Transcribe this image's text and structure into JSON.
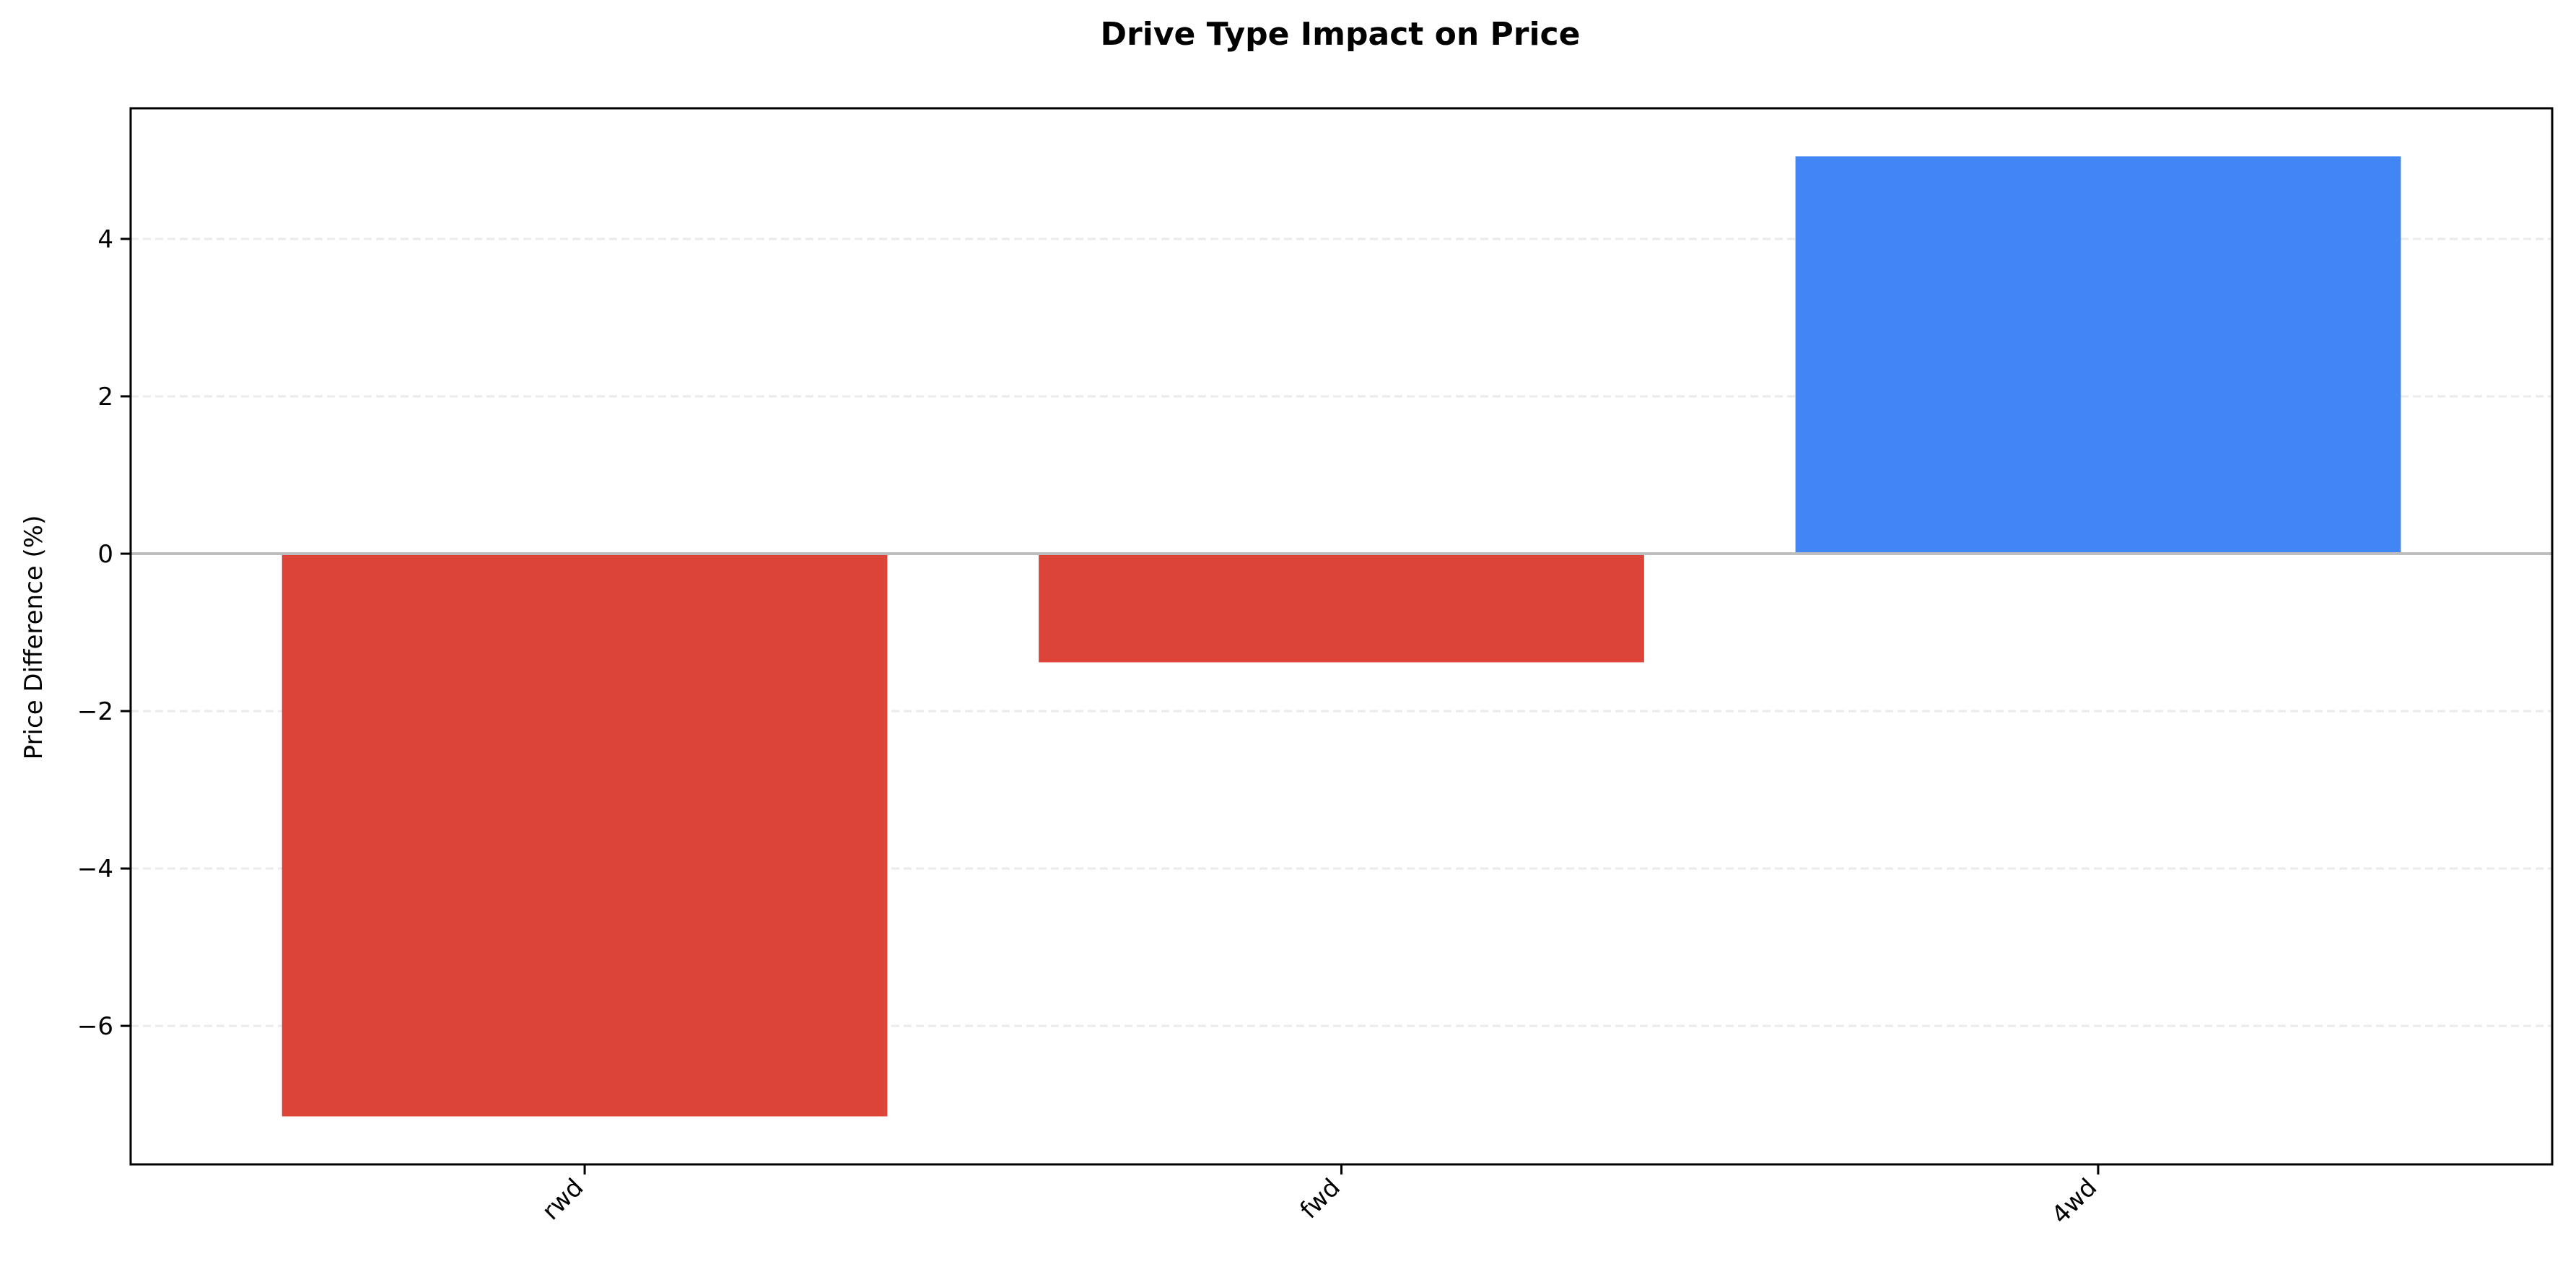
{
  "chart_data": {
    "type": "bar",
    "title": "Drive Type Impact on Price",
    "xlabel": "",
    "ylabel": "Price Difference (%)",
    "categories": [
      "rwd",
      "fwd",
      "4wd"
    ],
    "values": [
      -7.15,
      -1.38,
      5.05
    ],
    "ylim": [
      -7.76,
      5.66
    ],
    "yticks": [
      -6,
      -4,
      -2,
      0,
      2,
      4
    ],
    "ytick_labels": [
      "−6",
      "−4",
      "−2",
      "0",
      "2",
      "4"
    ],
    "grid": "y-dashed",
    "reference_line": 0,
    "legend": "none",
    "colors": {
      "negative": "#db4437",
      "positive": "#4285f4",
      "zero_line": "#bdbdbd",
      "grid": "#ebebeb"
    }
  }
}
